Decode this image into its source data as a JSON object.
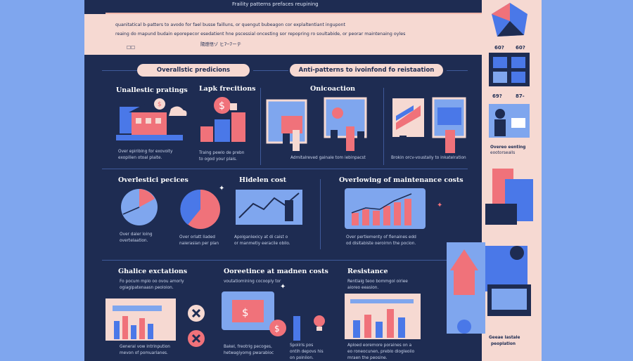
{
  "header": {
    "top_fragment": "Fraility patterns prefaces reupining",
    "intro_lines": [
      "quanitatical b-patters to avodo for fael busse failluns, or quengut bubeagon cor explaltentiant ingupont",
      "reaing do mapund budain eporepecor esedatient hne pscessial oncesting sor repopring ro soultabide, or peorar maintenaing oyles",
      "陽燈悟ゾ ヒ7─7ーテ"
    ],
    "intro_mark": "□□",
    "pill_left": "Overallstic predicions",
    "pill_right": "Anti-patterns to ivoinfond fo reistaation"
  },
  "sections": {
    "s1": {
      "title": "Unallestic pratings",
      "caption": [
        "Over epiribing for exovoity",
        "exopilien otoal plaite."
      ]
    },
    "s2": {
      "title": "Lapk frecitions",
      "caption": [
        "Traing pewlo de prebn",
        "to ogod your plais."
      ]
    },
    "s3": {
      "title": "Onicoaction",
      "caption": [
        "Admitalreved gainale tom iebinpacst"
      ]
    },
    "s4": {
      "title": "",
      "caption": [
        "Brokin orcv-voustally to inkatelration"
      ]
    },
    "s5": {
      "title": "Overlestici pecices",
      "caption": [
        "Over daler loing",
        "overtelaation."
      ]
    },
    "s6": {
      "title": "",
      "caption": [
        "Over orlatt liaded",
        "naierasian per plan"
      ]
    },
    "s7": {
      "title": "Hidelen cost",
      "caption": [
        "Apoiganlexicy at di caist o",
        "or manmetiy eeracile obilo."
      ]
    },
    "s8": {
      "title": "Overlowing of maintenance costs",
      "caption": [
        "Over pertiementy of flenaines edd",
        "od disitabiste oeroirnn the pocion."
      ]
    },
    "s9": {
      "title": "Ghalice exctations",
      "caption": [
        "Fo pocum mplo oo ovou amorly",
        "ogiagipatenaasn peoloion."
      ],
      "caption2": [
        "General vow intrinpution",
        "mevon of pomuarianes."
      ]
    },
    "s10": {
      "title": "Ooreetince at madnen costs",
      "caption": [
        "voutatiomining cocooply tor"
      ],
      "caption2": [
        "Bakel, freotrig pecoges,",
        "hetwagiyomg pwarabioc"
      ]
    },
    "s10b": {
      "caption": [
        "Spoiiris pos",
        "ontih depovs his",
        "on poiniion."
      ]
    },
    "s11": {
      "title": "Resistance",
      "caption": [
        "Rentiaig teoo bommgol oiriee",
        "aioreo eeasion."
      ],
      "caption2": [
        "Aploed eoremore poraines on a",
        "eo roneocunen, preblo diogleoiio",
        "mraen the peosine."
      ]
    }
  },
  "sidebar": {
    "labels": [
      "60?",
      "60?",
      "69?",
      "87-",
      "Overeo eenting",
      "eootorsealls"
    ],
    "footer": [
      "Geeae lastale",
      "peoplation"
    ]
  },
  "colors": {
    "navy": "#1e2c52",
    "blue": "#4a78e8",
    "lightblue": "#7fa6ee",
    "pink": "#f0727a",
    "peach": "#f6d9d2",
    "white": "#ffffff"
  }
}
